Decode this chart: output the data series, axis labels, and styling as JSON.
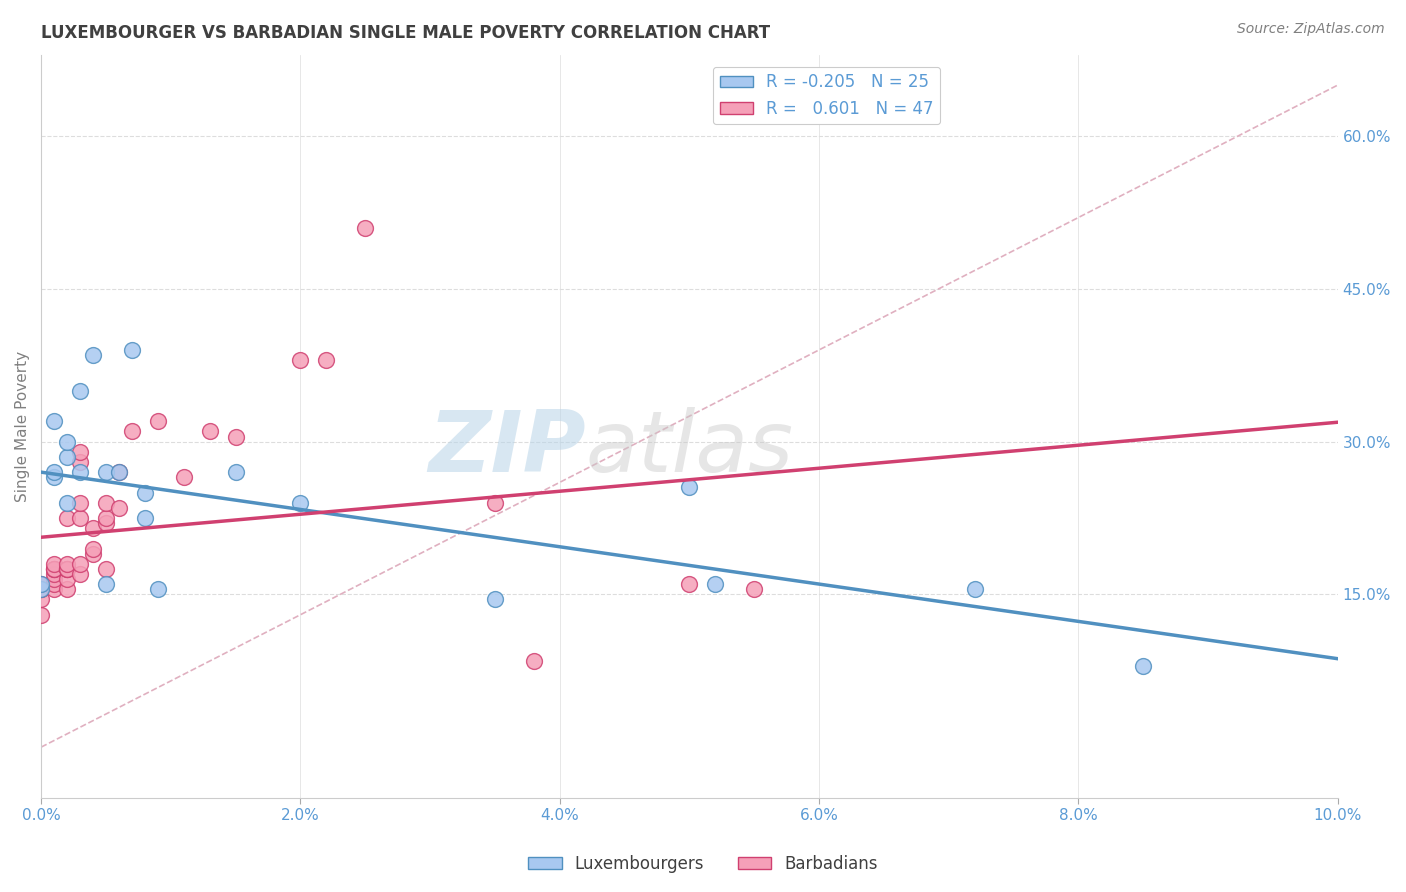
{
  "title": "LUXEMBOURGER VS BARBADIAN SINGLE MALE POVERTY CORRELATION CHART",
  "source": "Source: ZipAtlas.com",
  "ylabel": "Single Male Poverty",
  "xlabel": "",
  "xlim": [
    0.0,
    0.1
  ],
  "ylim": [
    -0.05,
    0.68
  ],
  "right_yticks": [
    0.15,
    0.3,
    0.45,
    0.6
  ],
  "right_ytick_labels": [
    "15.0%",
    "30.0%",
    "45.0%",
    "60.0%"
  ],
  "xtick_labels": [
    "0.0%",
    "2.0%",
    "4.0%",
    "6.0%",
    "8.0%",
    "10.0%"
  ],
  "xticks": [
    0.0,
    0.02,
    0.04,
    0.06,
    0.08,
    0.1
  ],
  "lux_color": "#a8c8f0",
  "bar_color": "#f5a0b8",
  "lux_line_color": "#5090c0",
  "bar_line_color": "#d04070",
  "lux_R": -0.205,
  "lux_N": 25,
  "bar_R": 0.601,
  "bar_N": 47,
  "watermark_zip": "ZIP",
  "watermark_atlas": "atlas",
  "legend_patch_lux": "#a8c8f0",
  "legend_patch_bar": "#f5a0b8",
  "lux_points_x": [
    0.0,
    0.0,
    0.001,
    0.001,
    0.001,
    0.002,
    0.002,
    0.002,
    0.003,
    0.003,
    0.004,
    0.005,
    0.005,
    0.006,
    0.007,
    0.008,
    0.008,
    0.009,
    0.015,
    0.02,
    0.035,
    0.05,
    0.052,
    0.072,
    0.085
  ],
  "lux_points_y": [
    0.155,
    0.16,
    0.265,
    0.27,
    0.32,
    0.285,
    0.3,
    0.24,
    0.27,
    0.35,
    0.385,
    0.27,
    0.16,
    0.27,
    0.39,
    0.25,
    0.225,
    0.155,
    0.27,
    0.24,
    0.145,
    0.255,
    0.16,
    0.155,
    0.08
  ],
  "bar_points_x": [
    0.0,
    0.0,
    0.0,
    0.0,
    0.0,
    0.001,
    0.001,
    0.001,
    0.001,
    0.001,
    0.001,
    0.001,
    0.001,
    0.002,
    0.002,
    0.002,
    0.002,
    0.002,
    0.002,
    0.002,
    0.003,
    0.003,
    0.003,
    0.003,
    0.003,
    0.003,
    0.004,
    0.004,
    0.004,
    0.005,
    0.005,
    0.005,
    0.005,
    0.006,
    0.006,
    0.007,
    0.009,
    0.011,
    0.013,
    0.015,
    0.02,
    0.022,
    0.025,
    0.035,
    0.038,
    0.05,
    0.055
  ],
  "bar_points_y": [
    0.13,
    0.145,
    0.155,
    0.155,
    0.16,
    0.155,
    0.16,
    0.165,
    0.17,
    0.175,
    0.175,
    0.175,
    0.18,
    0.155,
    0.165,
    0.175,
    0.175,
    0.175,
    0.18,
    0.225,
    0.17,
    0.18,
    0.225,
    0.24,
    0.28,
    0.29,
    0.19,
    0.195,
    0.215,
    0.175,
    0.22,
    0.225,
    0.24,
    0.235,
    0.27,
    0.31,
    0.32,
    0.265,
    0.31,
    0.305,
    0.38,
    0.38,
    0.51,
    0.24,
    0.085,
    0.16,
    0.155
  ],
  "dashed_line_x": [
    0.0,
    0.1
  ],
  "dashed_line_y": [
    0.0,
    0.65
  ],
  "background_color": "#ffffff",
  "grid_color": "#dddddd",
  "title_color": "#404040",
  "axis_label_color": "#808080",
  "tick_color": "#5b9bd5"
}
